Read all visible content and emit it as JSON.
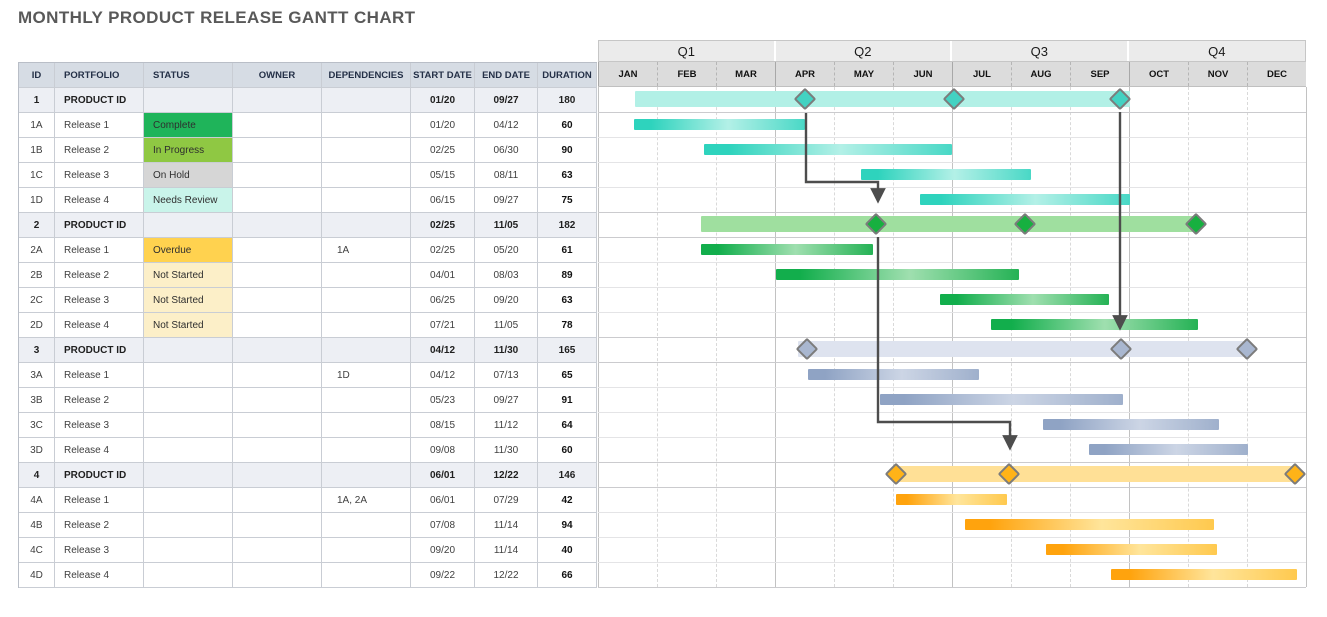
{
  "title": "MONTHLY PRODUCT RELEASE GANTT CHART",
  "table": {
    "columns": [
      "ID",
      "PORTFOLIO",
      "STATUS",
      "OWNER",
      "DEPENDENCIES",
      "START DATE",
      "END DATE",
      "DURATION"
    ],
    "rows": [
      {
        "id": "1",
        "portfolio": "PRODUCT ID",
        "status": "",
        "owner": "",
        "dependencies": "",
        "start": "01/20",
        "end": "09/27",
        "duration": "180",
        "section": 1,
        "kind": "summary"
      },
      {
        "id": "1A",
        "portfolio": "Release 1",
        "status": "Complete",
        "owner": "",
        "dependencies": "",
        "start": "01/20",
        "end": "04/12",
        "duration": "60",
        "section": 1,
        "kind": "task"
      },
      {
        "id": "1B",
        "portfolio": "Release 2",
        "status": "In Progress",
        "owner": "",
        "dependencies": "",
        "start": "02/25",
        "end": "06/30",
        "duration": "90",
        "section": 1,
        "kind": "task"
      },
      {
        "id": "1C",
        "portfolio": "Release 3",
        "status": "On Hold",
        "owner": "",
        "dependencies": "",
        "start": "05/15",
        "end": "08/11",
        "duration": "63",
        "section": 1,
        "kind": "task"
      },
      {
        "id": "1D",
        "portfolio": "Release 4",
        "status": "Needs Review",
        "owner": "",
        "dependencies": "",
        "start": "06/15",
        "end": "09/27",
        "duration": "75",
        "section": 1,
        "kind": "task"
      },
      {
        "id": "2",
        "portfolio": "PRODUCT ID",
        "status": "",
        "owner": "",
        "dependencies": "",
        "start": "02/25",
        "end": "11/05",
        "duration": "182",
        "section": 2,
        "kind": "summary"
      },
      {
        "id": "2A",
        "portfolio": "Release 1",
        "status": "Overdue",
        "owner": "",
        "dependencies": "1A",
        "start": "02/25",
        "end": "05/20",
        "duration": "61",
        "section": 2,
        "kind": "task"
      },
      {
        "id": "2B",
        "portfolio": "Release 2",
        "status": "Not Started",
        "owner": "",
        "dependencies": "",
        "start": "04/01",
        "end": "08/03",
        "duration": "89",
        "section": 2,
        "kind": "task"
      },
      {
        "id": "2C",
        "portfolio": "Release 3",
        "status": "Not Started",
        "owner": "",
        "dependencies": "",
        "start": "06/25",
        "end": "09/20",
        "duration": "63",
        "section": 2,
        "kind": "task"
      },
      {
        "id": "2D",
        "portfolio": "Release 4",
        "status": "Not Started",
        "owner": "",
        "dependencies": "",
        "start": "07/21",
        "end": "11/05",
        "duration": "78",
        "section": 2,
        "kind": "task"
      },
      {
        "id": "3",
        "portfolio": "PRODUCT ID",
        "status": "",
        "owner": "",
        "dependencies": "",
        "start": "04/12",
        "end": "11/30",
        "duration": "165",
        "section": 3,
        "kind": "summary"
      },
      {
        "id": "3A",
        "portfolio": "Release 1",
        "status": "",
        "owner": "",
        "dependencies": "1D",
        "start": "04/12",
        "end": "07/13",
        "duration": "65",
        "section": 3,
        "kind": "task"
      },
      {
        "id": "3B",
        "portfolio": "Release 2",
        "status": "",
        "owner": "",
        "dependencies": "",
        "start": "05/23",
        "end": "09/27",
        "duration": "91",
        "section": 3,
        "kind": "task"
      },
      {
        "id": "3C",
        "portfolio": "Release 3",
        "status": "",
        "owner": "",
        "dependencies": "",
        "start": "08/15",
        "end": "11/12",
        "duration": "64",
        "section": 3,
        "kind": "task"
      },
      {
        "id": "3D",
        "portfolio": "Release 4",
        "status": "",
        "owner": "",
        "dependencies": "",
        "start": "09/08",
        "end": "11/30",
        "duration": "60",
        "section": 3,
        "kind": "task"
      },
      {
        "id": "4",
        "portfolio": "PRODUCT ID",
        "status": "",
        "owner": "",
        "dependencies": "",
        "start": "06/01",
        "end": "12/22",
        "duration": "146",
        "section": 4,
        "kind": "summary"
      },
      {
        "id": "4A",
        "portfolio": "Release 1",
        "status": "",
        "owner": "",
        "dependencies": "1A, 2A",
        "start": "06/01",
        "end": "07/29",
        "duration": "42",
        "section": 4,
        "kind": "task"
      },
      {
        "id": "4B",
        "portfolio": "Release 2",
        "status": "",
        "owner": "",
        "dependencies": "",
        "start": "07/08",
        "end": "11/14",
        "duration": "94",
        "section": 4,
        "kind": "task"
      },
      {
        "id": "4C",
        "portfolio": "Release 3",
        "status": "",
        "owner": "",
        "dependencies": "",
        "start": "09/20",
        "end": "11/14",
        "duration": "40",
        "section": 4,
        "kind": "task"
      },
      {
        "id": "4D",
        "portfolio": "Release 4",
        "status": "",
        "owner": "",
        "dependencies": "",
        "start": "09/22",
        "end": "12/22",
        "duration": "66",
        "section": 4,
        "kind": "task"
      }
    ]
  },
  "timeline": {
    "quarters": [
      "Q1",
      "Q2",
      "Q3",
      "Q4"
    ],
    "months": [
      "JAN",
      "FEB",
      "MAR",
      "APR",
      "MAY",
      "JUN",
      "JUL",
      "AUG",
      "SEP",
      "OCT",
      "NOV",
      "DEC"
    ]
  },
  "status_colors": {
    "Complete": "#1fb45a",
    "In Progress": "#8fc843",
    "On Hold": "#d6d6d6",
    "Needs Review": "#c9f4ea",
    "Overdue": "#ffd24f",
    "Not Started": "#fcefc8"
  },
  "chart_data": {
    "type": "gantt",
    "title": "MONTHLY PRODUCT RELEASE GANTT CHART",
    "x_axis": {
      "units": "months",
      "range": [
        "JAN",
        "DEC"
      ],
      "quarter_boundaries_solid": true,
      "month_dividers_dashed": true
    },
    "sections": {
      "1": {
        "solid": "#2ed3bd",
        "light": "#b3f0e7",
        "mid": "#49d8c6",
        "summary": "#b2f0e6",
        "diamond": "#43d2c2"
      },
      "2": {
        "solid": "#12ae4c",
        "light": "#9fdfaf",
        "mid": "#25b255",
        "summary": "#9fdf9f",
        "diamond": "#17b040"
      },
      "3": {
        "solid": "#8fa3c4",
        "light": "#ccd5e5",
        "mid": "#9fb0cc",
        "summary": "#dee3ef",
        "diamond": "#a9b7d0"
      },
      "4": {
        "solid": "#ffa30d",
        "light": "#ffe59b",
        "mid": "#ffc94e",
        "summary": "#ffe096",
        "diamond": "#ffb318"
      }
    },
    "bars": [
      {
        "id": "1",
        "section": 1,
        "kind": "summary",
        "start_pct": 5.2,
        "end_pct": 75.2,
        "milestones_pct": [
          29.2,
          50.3,
          73.7
        ],
        "milestone_dates": [
          "04/12",
          "06/30",
          "09/27"
        ]
      },
      {
        "id": "1A",
        "section": 1,
        "kind": "task",
        "start_pct": 5.1,
        "end_pct": 29.2
      },
      {
        "id": "1B",
        "section": 1,
        "kind": "task",
        "start_pct": 15.0,
        "end_pct": 50.0
      },
      {
        "id": "1C",
        "section": 1,
        "kind": "task",
        "start_pct": 37.1,
        "end_pct": 61.2
      },
      {
        "id": "1D",
        "section": 1,
        "kind": "task",
        "start_pct": 45.5,
        "end_pct": 75.2
      },
      {
        "id": "2",
        "section": 2,
        "kind": "summary",
        "start_pct": 14.6,
        "end_pct": 84.7,
        "milestones_pct": [
          39.2,
          60.3,
          84.5
        ],
        "milestone_dates": [
          "05/20",
          "08/03",
          "11/05"
        ]
      },
      {
        "id": "2A",
        "section": 2,
        "kind": "task",
        "start_pct": 14.6,
        "end_pct": 38.8
      },
      {
        "id": "2B",
        "section": 2,
        "kind": "task",
        "start_pct": 25.1,
        "end_pct": 59.5
      },
      {
        "id": "2C",
        "section": 2,
        "kind": "task",
        "start_pct": 48.3,
        "end_pct": 72.2
      },
      {
        "id": "2D",
        "section": 2,
        "kind": "task",
        "start_pct": 55.5,
        "end_pct": 84.8
      },
      {
        "id": "3",
        "section": 3,
        "kind": "summary",
        "start_pct": 28.2,
        "end_pct": 91.4,
        "milestones_pct": [
          29.5,
          73.8,
          91.6
        ],
        "milestone_dates": [
          "04/12",
          "09/20",
          "11/30"
        ]
      },
      {
        "id": "3A",
        "section": 3,
        "kind": "task",
        "start_pct": 29.6,
        "end_pct": 53.8
      },
      {
        "id": "3B",
        "section": 3,
        "kind": "task",
        "start_pct": 39.8,
        "end_pct": 74.2
      },
      {
        "id": "3C",
        "section": 3,
        "kind": "task",
        "start_pct": 62.9,
        "end_pct": 87.7
      },
      {
        "id": "3D",
        "section": 3,
        "kind": "task",
        "start_pct": 69.3,
        "end_pct": 91.8
      },
      {
        "id": "4",
        "section": 4,
        "kind": "summary",
        "start_pct": 42.1,
        "end_pct": 98.4,
        "milestones_pct": [
          42.1,
          58.1,
          98.4
        ],
        "milestone_dates": [
          "06/01",
          "07/29",
          "12/22"
        ]
      },
      {
        "id": "4A",
        "section": 4,
        "kind": "task",
        "start_pct": 42.1,
        "end_pct": 57.8
      },
      {
        "id": "4B",
        "section": 4,
        "kind": "task",
        "start_pct": 51.8,
        "end_pct": 87.0
      },
      {
        "id": "4C",
        "section": 4,
        "kind": "task",
        "start_pct": 63.3,
        "end_pct": 87.5
      },
      {
        "id": "4D",
        "section": 4,
        "kind": "task",
        "start_pct": 72.5,
        "end_pct": 98.7
      }
    ],
    "dependency_arrows": [
      {
        "from": "milestone 04/12 (1A end)",
        "to": "milestone 05/20 (2A end)",
        "points": [
          [
            806,
            113
          ],
          [
            806,
            182
          ],
          [
            878,
            182
          ],
          [
            878,
            199
          ]
        ]
      },
      {
        "from": "milestone 05/20 (2A end)",
        "to": "milestone 07/29 (4A end)",
        "points": [
          [
            878,
            237
          ],
          [
            878,
            422
          ],
          [
            1010,
            422
          ],
          [
            1010,
            446
          ]
        ]
      },
      {
        "from": "milestone 09/27 (release 1 end)",
        "to": "release 3 milestone 09/20",
        "points": [
          [
            1120,
            112
          ],
          [
            1120,
            326
          ]
        ]
      }
    ],
    "arrow_color": "#4d4d4d"
  }
}
